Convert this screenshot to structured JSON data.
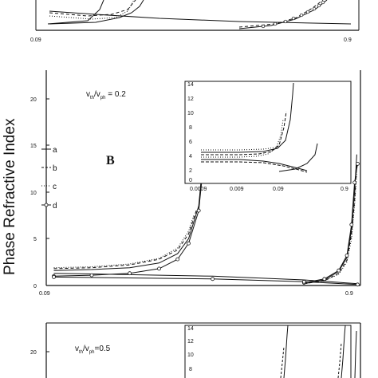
{
  "ylabel": "Phase Refractive Index",
  "panel_label": "B",
  "annotation_top": "v",
  "annotation_top_sub1": "th",
  "annotation_top_mid": "/v",
  "annotation_top_sub2": "ph",
  "annotation_top_tail": " = 0.2",
  "annotation_bottom": "v",
  "annotation_bottom_sub1": "th",
  "annotation_bottom_mid": "/v",
  "annotation_bottom_sub2": "ph",
  "annotation_bottom_tail": "=0.5",
  "legend": [
    "a",
    "b",
    "c",
    "d"
  ],
  "top_panel_xticks": [
    "0.09",
    "0.9"
  ],
  "chart_data": [
    {
      "type": "line",
      "panel": "top (cropped)",
      "x_ticks": [
        "0.09",
        "0.9"
      ],
      "series": []
    },
    {
      "type": "line",
      "panel": "B",
      "xscale": "log",
      "x_ticks": [
        "0.09",
        "0.9"
      ],
      "y_ticks": [
        "0",
        "5",
        "10",
        "15",
        "20"
      ],
      "ylim": [
        0,
        23
      ],
      "series": [
        {
          "name": "a",
          "branch1": {
            "x": [
              0.09,
              0.12,
              0.16,
              0.2,
              0.23,
              0.25,
              0.27,
              0.28,
              0.285
            ],
            "y": [
              1.6,
              1.7,
              1.9,
              2.4,
              3.4,
              5,
              8.5,
              14,
              19
            ]
          },
          "branch2": {
            "x": [
              0.6,
              0.7,
              0.78,
              0.83,
              0.86,
              0.88,
              0.895
            ],
            "y": [
              0.2,
              0.6,
              1.5,
              3,
              6,
              10,
              14
            ]
          },
          "decay": {
            "x": [
              0.09,
              0.3,
              0.6,
              0.9
            ],
            "y": [
              1.3,
              1.0,
              0.6,
              0.2
            ]
          }
        },
        {
          "name": "b",
          "branch1": {
            "x": [
              0.09,
              0.12,
              0.16,
              0.2,
              0.23,
              0.25,
              0.265
            ],
            "y": [
              1.8,
              1.9,
              2.2,
              2.8,
              3.8,
              5.5,
              8
            ]
          },
          "branch2": {
            "x": [
              0.6,
              0.7,
              0.78,
              0.83,
              0.86,
              0.88,
              0.895
            ],
            "y": [
              0.2,
              0.5,
              1.3,
              2.7,
              5.5,
              9,
              13
            ]
          }
        },
        {
          "name": "c",
          "branch1": {
            "x": [
              0.09,
              0.12,
              0.16,
              0.2,
              0.23,
              0.25,
              0.26
            ],
            "y": [
              1.9,
              2.0,
              2.3,
              2.9,
              4,
              5.8,
              7.5
            ]
          },
          "branch2": {
            "x": [
              0.6,
              0.7,
              0.78,
              0.83,
              0.86,
              0.88,
              0.895
            ],
            "y": [
              0.2,
              0.5,
              1.2,
              2.5,
              5,
              8.5,
              12
            ]
          }
        },
        {
          "name": "d",
          "branch1": {
            "x": [
              0.09,
              0.12,
              0.16,
              0.2,
              0.23,
              0.25,
              0.27,
              0.28
            ],
            "y": [
              1.0,
              1.1,
              1.3,
              1.8,
              2.8,
              4.5,
              8,
              13
            ]
          },
          "branch2": {
            "x": [
              0.6,
              0.7,
              0.78,
              0.83,
              0.86,
              0.88,
              0.9
            ],
            "y": [
              0.3,
              0.7,
              1.6,
              3.2,
              6.5,
              11,
              13
            ]
          },
          "decay": {
            "x": [
              0.09,
              0.3,
              0.6,
              0.9
            ],
            "y": [
              0.9,
              0.7,
              0.4,
              0.1
            ]
          }
        }
      ],
      "inset": {
        "xscale": "log",
        "x_ticks": [
          "0.0009",
          "0.009",
          "0.09",
          "0.9"
        ],
        "y_ticks": [
          "0",
          "2",
          "4",
          "6",
          "8",
          "10",
          "12",
          "14"
        ],
        "ylim": [
          0,
          14
        ]
      }
    },
    {
      "type": "line",
      "panel": "bottom (cropped)",
      "y_ticks": [
        "20"
      ],
      "inset_y_ticks": [
        "14",
        "12",
        "10",
        "8"
      ],
      "series": []
    }
  ]
}
